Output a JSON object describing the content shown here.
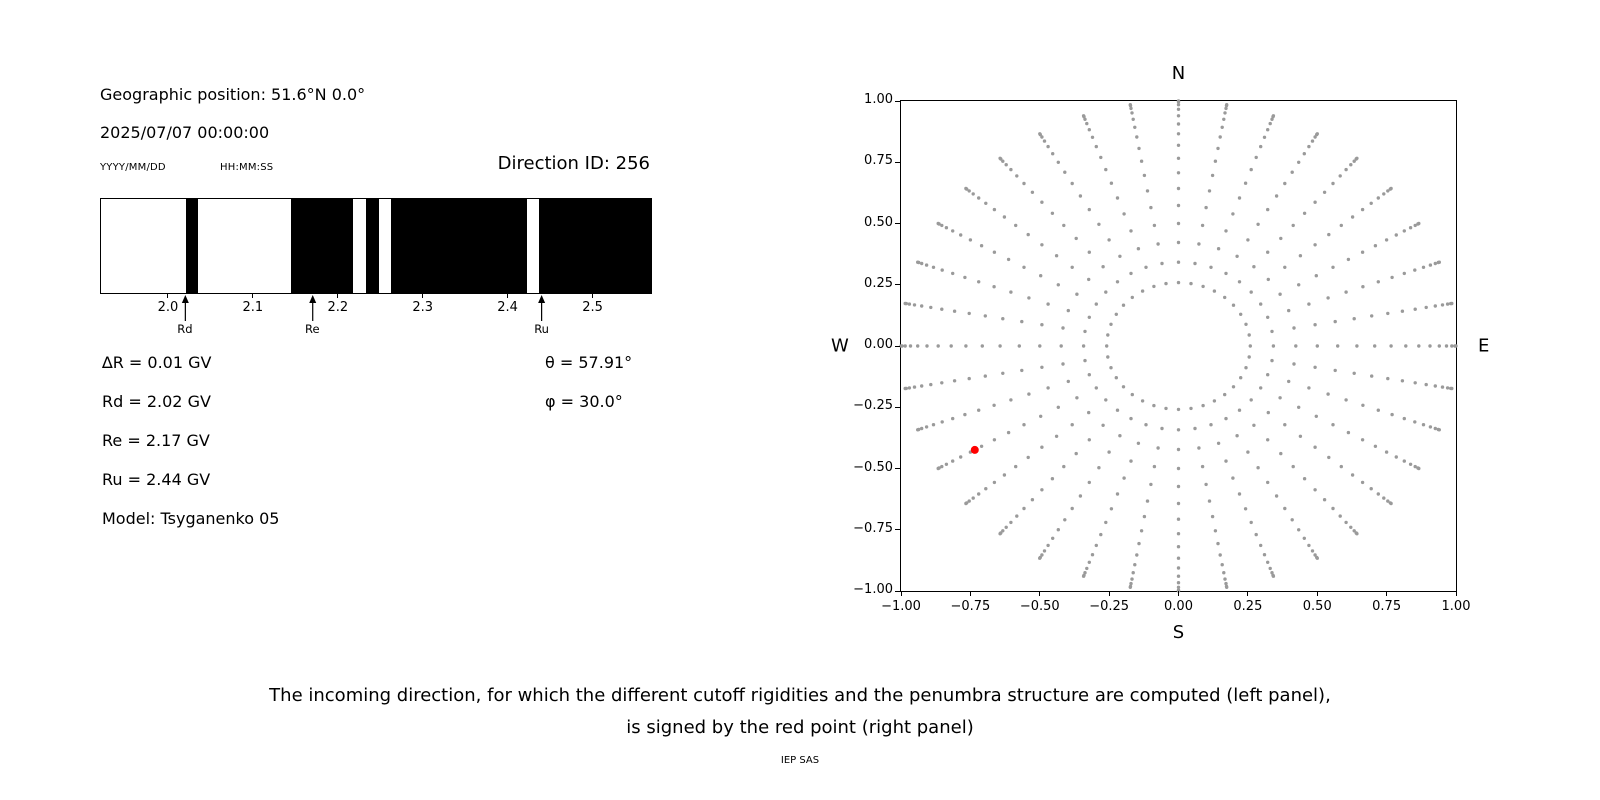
{
  "left_panel": {
    "geo_position": "Geographic position: 51.6°N 0.0°",
    "datetime": "2025/07/07 00:00:00",
    "date_format": "YYYY/MM/DD",
    "time_format": "HH:MM:SS",
    "direction_id": "Direction ID: 256",
    "lines": [
      "∆R = 0.01 GV",
      "Rd = 2.02 GV",
      "Re = 2.17 GV",
      "Ru = 2.44 GV",
      "Model: Tsyganenko 05"
    ],
    "angles": [
      "θ = 57.91°",
      "φ = 30.0°"
    ]
  },
  "caption": {
    "line1": "The incoming direction, for which the different cutoff rigidities and the penumbra structure are computed (left panel),",
    "line2": "is signed by the red point (right panel)",
    "credit": "IEP SAS"
  },
  "chart_data": [
    {
      "type": "bar",
      "name": "penumbra-structure",
      "description": "Cutoff rigidity penumbra: black bands = forbidden trajectories, white = allowed",
      "x_range_gv": [
        1.92,
        2.57
      ],
      "forbidden_segments_gv": [
        [
          2.02,
          2.035
        ],
        [
          2.144,
          2.218
        ],
        [
          2.233,
          2.248
        ],
        [
          2.263,
          2.423
        ],
        [
          2.438,
          2.57
        ]
      ],
      "xticks": [
        {
          "value": 2.0,
          "label": "2.0"
        },
        {
          "value": 2.1,
          "label": "2.1"
        },
        {
          "value": 2.2,
          "label": "2.2"
        },
        {
          "value": 2.3,
          "label": "2.3"
        },
        {
          "value": 2.4,
          "label": "2.4"
        },
        {
          "value": 2.5,
          "label": "2.5"
        }
      ],
      "markers": [
        {
          "label": "Rd",
          "value_gv": 2.02
        },
        {
          "label": "Re",
          "value_gv": 2.17
        },
        {
          "label": "Ru",
          "value_gv": 2.44
        }
      ],
      "values_gv": {
        "delta_R": 0.01,
        "Rd": 2.02,
        "Re": 2.17,
        "Ru": 2.44
      },
      "model": "Tsyganenko 05",
      "bar_color": "#000000",
      "background": "#ffffff"
    },
    {
      "type": "scatter",
      "name": "incoming-directions",
      "xlim": [
        -1,
        1
      ],
      "ylim": [
        -1,
        1
      ],
      "grid": false,
      "xticks": [
        {
          "value": -1.0,
          "label": "−1.00"
        },
        {
          "value": -0.75,
          "label": "−0.75"
        },
        {
          "value": -0.5,
          "label": "−0.50"
        },
        {
          "value": -0.25,
          "label": "−0.25"
        },
        {
          "value": 0.0,
          "label": "0.00"
        },
        {
          "value": 0.25,
          "label": "0.25"
        },
        {
          "value": 0.5,
          "label": "0.50"
        },
        {
          "value": 0.75,
          "label": "0.75"
        },
        {
          "value": 1.0,
          "label": "1.00"
        }
      ],
      "yticks": [
        {
          "value": 1.0,
          "label": "1.00"
        },
        {
          "value": 0.75,
          "label": "0.75"
        },
        {
          "value": 0.5,
          "label": "0.50"
        },
        {
          "value": 0.25,
          "label": "0.25"
        },
        {
          "value": 0.0,
          "label": "0.00"
        },
        {
          "value": -0.25,
          "label": "−0.25"
        },
        {
          "value": -0.5,
          "label": "−0.50"
        },
        {
          "value": -0.75,
          "label": "−0.75"
        },
        {
          "value": -1.0,
          "label": "−1.00"
        }
      ],
      "compass": {
        "top": "N",
        "bottom": "S",
        "left": "W",
        "right": "E"
      },
      "direction_grid": {
        "azimuth_start_deg": 0,
        "azimuth_step_deg": 10,
        "azimuth_count": 36,
        "zenith_min_deg": 15,
        "zenith_max_deg": 90,
        "zenith_step_deg": 5,
        "radius_rule": "sin(zenith)"
      },
      "dot_color": "#9a9a9a",
      "red_point": {
        "x": -0.734,
        "y": -0.424,
        "theta_deg": 57.91,
        "phi_deg": 30.0,
        "color": "#ff0000"
      }
    }
  ]
}
